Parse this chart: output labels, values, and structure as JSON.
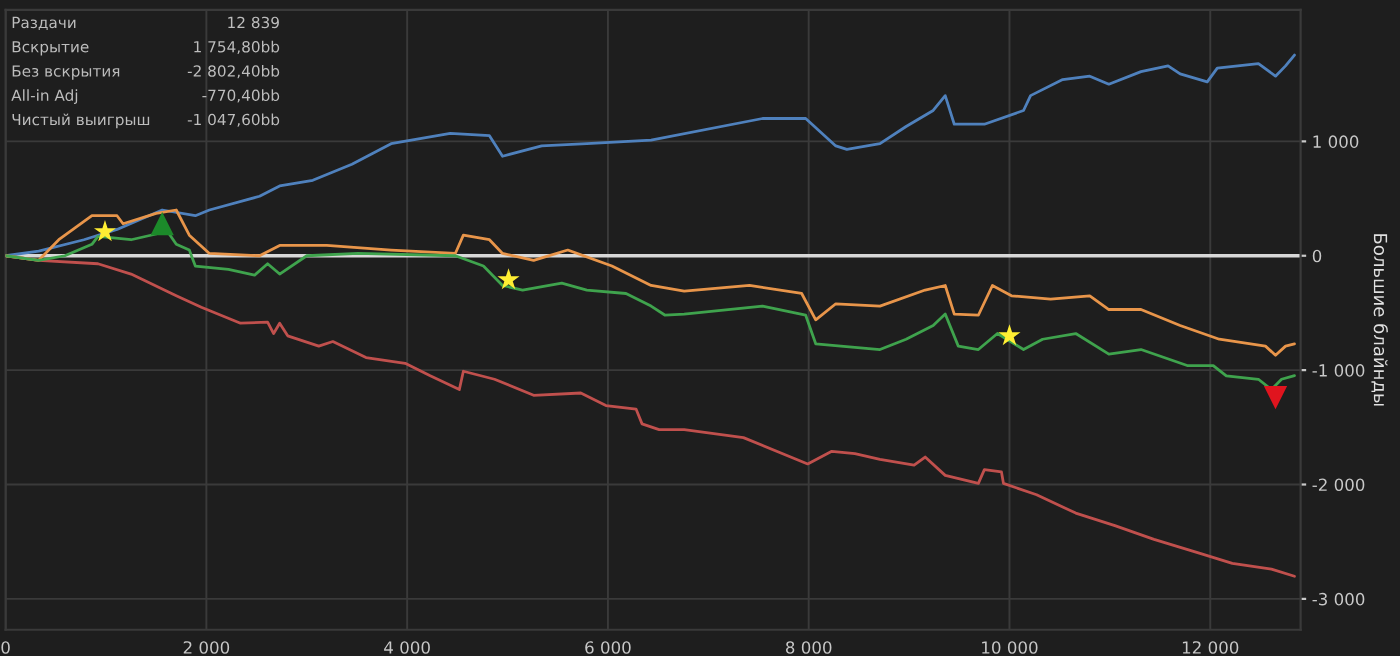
{
  "chart_data": {
    "type": "line",
    "ylabel": "Большие блайнды",
    "annotations": [
      "Раздачи",
      "12 839",
      "Вскрытие",
      "1 754,80bb",
      "Без вскрытия",
      "-2 802,40bb",
      "All-in Adj",
      "-770,40bb",
      "Чистый выигрыш",
      "-1 047,60bb"
    ],
    "xlim": [
      0,
      12900
    ],
    "ylim": [
      -3270,
      2150
    ],
    "xticks": [
      0,
      {
        "value": 2000,
        "label": "2 000"
      },
      {
        "value": 4000,
        "label": "4 000"
      },
      {
        "value": 6000,
        "label": "6 000"
      },
      {
        "value": 8000,
        "label": "8 000"
      },
      {
        "value": 10000,
        "label": "10 000"
      },
      {
        "value": 12000,
        "label": "12 000"
      }
    ],
    "yticks": [
      {
        "value": -3000,
        "label": "-3 000"
      },
      {
        "value": -2000,
        "label": "-2 000"
      },
      {
        "value": -1000,
        "label": "-1 000"
      },
      0,
      {
        "value": 1000,
        "label": "1 000"
      }
    ],
    "grid": true,
    "line_style": "solid",
    "ref_lines": [
      {
        "axis": "y",
        "value": 0,
        "color": "#d8d8d8"
      }
    ],
    "series": [
      {
        "color": "#4f81bd",
        "x": [
          0,
          330,
          780,
          1110,
          1560,
          1890,
          2030,
          2530,
          2730,
          3060,
          3450,
          3840,
          4430,
          4820,
          4950,
          5340,
          5790,
          6430,
          7540,
          7970,
          8270,
          8380,
          8710,
          8970,
          9240,
          9360,
          9450,
          9750,
          10140,
          10210,
          10530,
          10800,
          10990,
          11310,
          11580,
          11700,
          11970,
          12070,
          12480,
          12650,
          12750,
          12839
        ],
        "values": [
          0,
          40,
          140,
          230,
          400,
          350,
          400,
          520,
          610,
          660,
          800,
          980,
          1070,
          1050,
          870,
          960,
          980,
          1010,
          1200,
          1200,
          960,
          930,
          980,
          1130,
          1270,
          1400,
          1150,
          1150,
          1270,
          1400,
          1540,
          1570,
          1500,
          1610,
          1660,
          1590,
          1520,
          1640,
          1680,
          1570,
          1660,
          1755
        ]
      },
      {
        "color": "#c0504d",
        "x": [
          0,
          330,
          920,
          1250,
          1700,
          1950,
          2340,
          2610,
          2670,
          2730,
          2810,
          3120,
          3260,
          3590,
          3980,
          4230,
          4520,
          4560,
          4870,
          5260,
          5730,
          5980,
          6280,
          6340,
          6510,
          6760,
          7350,
          7990,
          8230,
          8460,
          8710,
          9050,
          9160,
          9360,
          9690,
          9750,
          9920,
          9940,
          10270,
          10660,
          11050,
          11440,
          11890,
          12220,
          12610,
          12839
        ],
        "values": [
          0,
          -40,
          -70,
          -160,
          -350,
          -450,
          -590,
          -580,
          -680,
          -590,
          -700,
          -790,
          -750,
          -890,
          -940,
          -1050,
          -1170,
          -1010,
          -1080,
          -1220,
          -1200,
          -1310,
          -1340,
          -1470,
          -1520,
          -1520,
          -1590,
          -1820,
          -1710,
          -1730,
          -1780,
          -1830,
          -1760,
          -1920,
          -1990,
          -1870,
          -1890,
          -1990,
          -2090,
          -2250,
          -2360,
          -2480,
          -2600,
          -2690,
          -2740,
          -2802
        ]
      },
      {
        "color": "#e8954a",
        "x": [
          0,
          330,
          530,
          860,
          1110,
          1170,
          1500,
          1700,
          1830,
          2030,
          2530,
          2730,
          3200,
          3840,
          4480,
          4560,
          4820,
          4950,
          5260,
          5600,
          6040,
          6430,
          6760,
          7410,
          7930,
          8070,
          8270,
          8710,
          9160,
          9360,
          9450,
          9690,
          9830,
          10020,
          10410,
          10800,
          10990,
          11310,
          11700,
          12090,
          12550,
          12650,
          12750,
          12839
        ],
        "values": [
          0,
          -40,
          140,
          350,
          350,
          280,
          370,
          400,
          180,
          20,
          0,
          90,
          90,
          50,
          20,
          180,
          140,
          20,
          -40,
          50,
          -90,
          -260,
          -310,
          -260,
          -330,
          -560,
          -420,
          -440,
          -300,
          -260,
          -510,
          -520,
          -260,
          -350,
          -380,
          -350,
          -470,
          -470,
          -610,
          -730,
          -790,
          -870,
          -790,
          -770
        ]
      },
      {
        "color": "#3fa34d",
        "x": [
          0,
          330,
          590,
          860,
          920,
          1250,
          1500,
          1560,
          1700,
          1830,
          1890,
          2220,
          2480,
          2610,
          2730,
          3000,
          3510,
          4480,
          4760,
          4950,
          5150,
          5540,
          5790,
          6180,
          6430,
          6570,
          6760,
          7540,
          7970,
          8070,
          8710,
          8970,
          9240,
          9360,
          9490,
          9690,
          9880,
          10140,
          10330,
          10660,
          10990,
          11310,
          11770,
          12030,
          12160,
          12480,
          12610,
          12710,
          12839
        ],
        "values": [
          0,
          -40,
          0,
          100,
          170,
          140,
          190,
          280,
          100,
          50,
          -90,
          -120,
          -170,
          -70,
          -160,
          0,
          20,
          0,
          -90,
          -260,
          -300,
          -240,
          -300,
          -330,
          -440,
          -520,
          -510,
          -440,
          -520,
          -770,
          -820,
          -730,
          -610,
          -510,
          -790,
          -820,
          -680,
          -820,
          -730,
          -680,
          -860,
          -820,
          -960,
          -960,
          -1050,
          -1080,
          -1170,
          -1080,
          -1048
        ]
      },
      {
        "type": "scatter",
        "color": "#ffee33",
        "marker": "star",
        "x": [
          990,
          5010,
          10000
        ],
        "values": [
          210,
          -210,
          -700
        ]
      },
      {
        "type": "scatter",
        "color": "#1c8a2a",
        "marker": "triangle",
        "x": [
          1560
        ],
        "values": [
          280
        ]
      },
      {
        "type": "scatter",
        "color": "#e0141e",
        "marker": "triangle_down",
        "x": [
          12650
        ],
        "values": [
          -1240
        ]
      }
    ]
  }
}
